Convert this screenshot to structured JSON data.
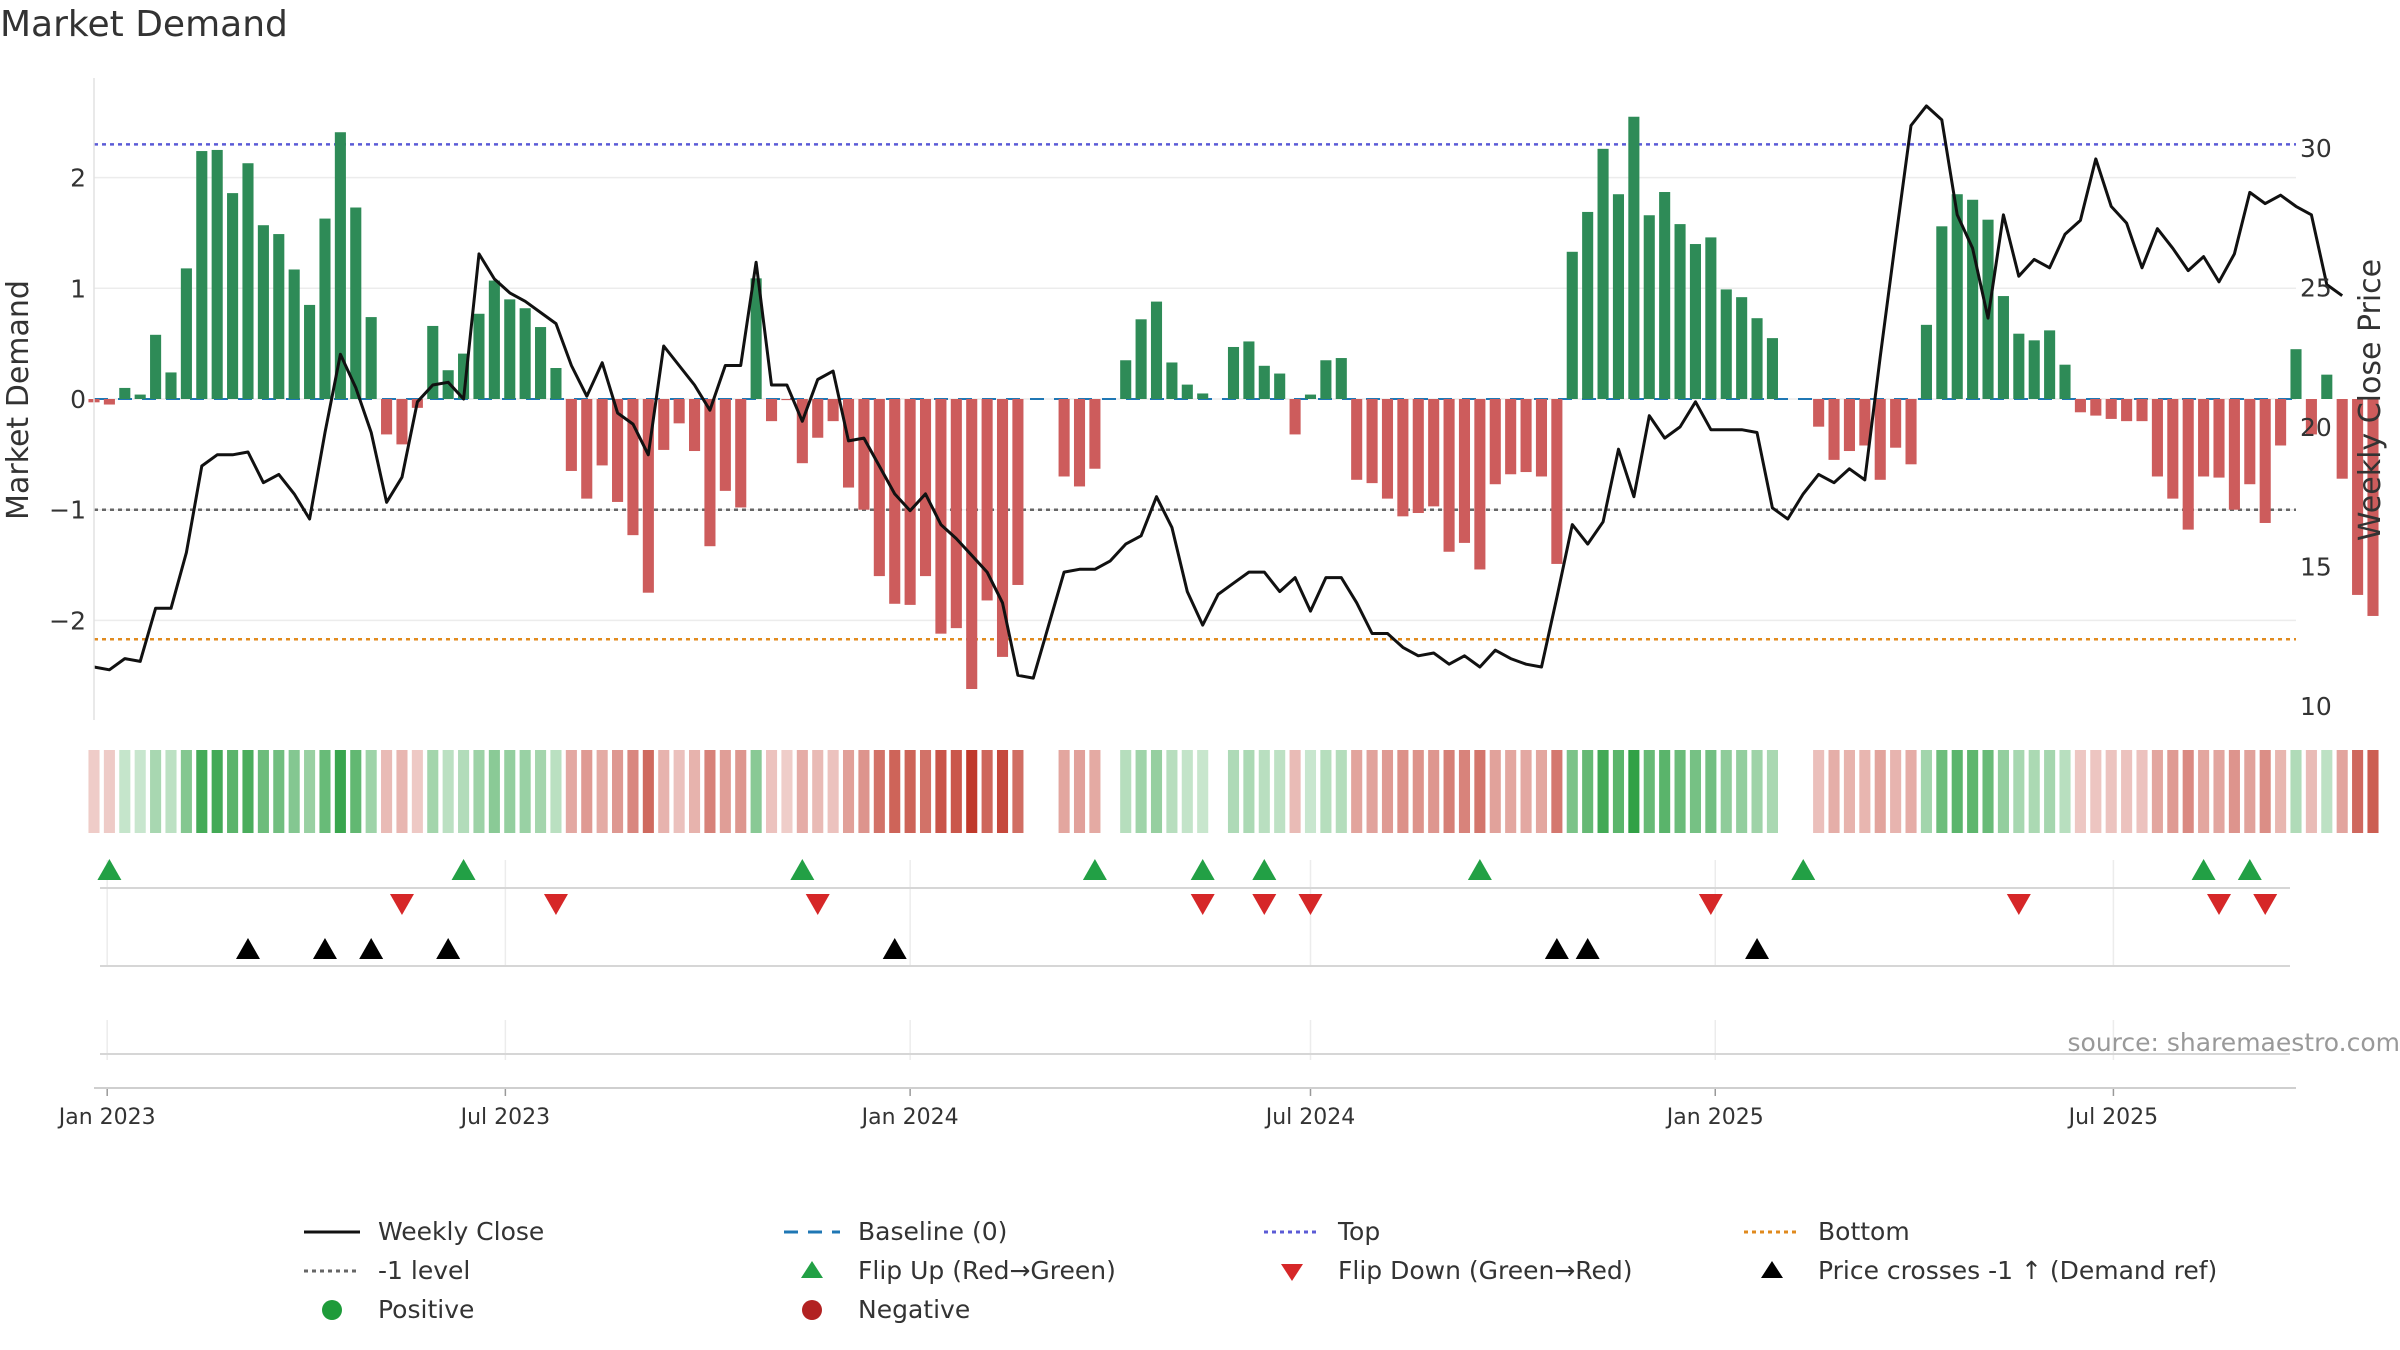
{
  "title": "Market Demand",
  "source_note": "source: sharemaestro.com",
  "colors": {
    "positive_bar": "#2e8b57",
    "negative_bar": "#cd5c5c",
    "close_line": "#111111",
    "baseline": "#1f77b4",
    "top": "#5b5bd6",
    "bottom": "#e08a1e",
    "minus_one": "#666666",
    "flip_up": "#22a045",
    "flip_down": "#d62728",
    "cross": "#000000",
    "positive_dot": "#1e9b3a",
    "negative_dot": "#b22222"
  },
  "chart_data": {
    "type": "bar",
    "title": "Market Demand",
    "ylabel": "Market Demand",
    "y2label": "Weekly Close Price",
    "ylim": [
      -2.9,
      2.9
    ],
    "y2lim": [
      9.5,
      32.5
    ],
    "yticks": [
      -2,
      -1,
      0,
      1,
      2
    ],
    "ytick_labels": [
      "−2",
      "−1",
      "0",
      "1",
      "2"
    ],
    "y2ticks": [
      10,
      15,
      20,
      25,
      30
    ],
    "y2tick_labels": [
      "10",
      "15",
      "20",
      "25",
      "30"
    ],
    "top_level": 2.3,
    "bottom_level": -2.17,
    "minus_one_level": -1,
    "x_start": "2022-12-26",
    "x_end": "2025-09-22",
    "xticks": [
      {
        "date": "2023-01-01",
        "label": "Jan 2023"
      },
      {
        "date": "2023-07-01",
        "label": "Jul 2023"
      },
      {
        "date": "2024-01-01",
        "label": "Jan 2024"
      },
      {
        "date": "2024-07-01",
        "label": "Jul 2024"
      },
      {
        "date": "2025-01-01",
        "label": "Jan 2025"
      },
      {
        "date": "2025-07-01",
        "label": "Jul 2025"
      }
    ],
    "first_week": "2022-12-26",
    "demand": [
      -0.03,
      -0.05,
      0.1,
      0.04,
      0.58,
      0.24,
      1.18,
      2.24,
      2.25,
      1.86,
      2.13,
      1.57,
      1.49,
      1.17,
      0.85,
      1.63,
      2.41,
      1.73,
      0.74,
      -0.32,
      -0.41,
      -0.08,
      0.66,
      0.26,
      0.41,
      0.77,
      1.07,
      0.9,
      0.82,
      0.65,
      0.28,
      -0.65,
      -0.9,
      -0.6,
      -0.93,
      -1.23,
      -1.75,
      -0.46,
      -0.22,
      -0.47,
      -1.33,
      -0.83,
      -0.98,
      1.09,
      -0.2,
      -0.01,
      -0.58,
      -0.35,
      -0.2,
      -0.8,
      -1.0,
      -1.6,
      -1.85,
      -1.86,
      -1.6,
      -2.12,
      -2.07,
      -2.62,
      -1.82,
      -2.33,
      -1.68,
      0.0,
      0.0,
      -0.7,
      -0.79,
      -0.63,
      0.0,
      0.35,
      0.72,
      0.88,
      0.33,
      0.13,
      0.05,
      0.0,
      0.47,
      0.52,
      0.3,
      0.23,
      -0.32,
      0.04,
      0.35,
      0.37,
      -0.73,
      -0.76,
      -0.9,
      -1.06,
      -1.03,
      -0.97,
      -1.38,
      -1.3,
      -1.54,
      -0.77,
      -0.68,
      -0.66,
      -0.7,
      -1.49,
      1.33,
      1.69,
      2.26,
      1.85,
      2.55,
      1.66,
      1.87,
      1.58,
      1.4,
      1.46,
      0.99,
      0.92,
      0.73,
      0.55,
      0.0,
      0.0,
      -0.25,
      -0.55,
      -0.47,
      -0.42,
      -0.73,
      -0.44,
      -0.59,
      0.67,
      1.56,
      1.85,
      1.8,
      1.62,
      0.93,
      0.59,
      0.53,
      0.62,
      0.31,
      -0.12,
      -0.15,
      -0.18,
      -0.2,
      -0.2,
      -0.7,
      -0.9,
      -1.18,
      -0.7,
      -0.71,
      -1.0,
      -0.77,
      -1.12,
      -0.42,
      0.45,
      -0.32,
      0.22,
      -0.72,
      -1.77,
      -1.96
    ],
    "close": [
      11.4,
      11.3,
      11.7,
      11.6,
      13.5,
      13.5,
      15.5,
      18.6,
      19.0,
      19.0,
      19.1,
      18.0,
      18.3,
      17.6,
      16.7,
      19.8,
      22.6,
      21.4,
      19.8,
      17.3,
      18.2,
      20.9,
      21.5,
      21.6,
      21.0,
      26.2,
      25.3,
      24.8,
      24.5,
      24.1,
      23.7,
      22.2,
      21.1,
      22.3,
      20.5,
      20.1,
      19.0,
      22.9,
      22.2,
      21.5,
      20.6,
      22.2,
      22.2,
      25.9,
      21.5,
      21.5,
      20.2,
      21.7,
      22.0,
      19.5,
      19.6,
      18.6,
      17.6,
      17.0,
      17.6,
      16.5,
      16.0,
      15.4,
      14.8,
      13.7,
      11.1,
      11.0,
      12.9,
      14.8,
      14.9,
      14.9,
      15.2,
      15.8,
      16.1,
      17.5,
      16.4,
      14.1,
      12.9,
      14.0,
      14.4,
      14.8,
      14.8,
      14.1,
      14.6,
      13.4,
      14.6,
      14.6,
      13.7,
      12.6,
      12.6,
      12.1,
      11.8,
      11.9,
      11.5,
      11.8,
      11.4,
      12.0,
      11.7,
      11.5,
      11.4,
      13.9,
      16.5,
      15.8,
      16.6,
      19.2,
      17.5,
      20.4,
      19.6,
      20.0,
      20.9,
      19.9,
      19.9,
      19.9,
      19.8,
      17.1,
      16.7,
      17.6,
      18.3,
      18.0,
      18.5,
      18.1,
      22.5,
      26.7,
      30.8,
      31.5,
      31.0,
      27.6,
      26.4,
      23.9,
      27.6,
      25.4,
      26.0,
      25.7,
      26.9,
      27.4,
      29.6,
      27.9,
      27.3,
      25.7,
      27.1,
      26.4,
      25.6,
      26.1,
      25.2,
      26.2,
      28.4,
      28.0,
      28.3,
      27.9,
      27.6,
      25.1,
      24.7
    ],
    "flip_up_dates": [
      "2023-01-02",
      "2023-06-12",
      "2023-11-13",
      "2024-03-25",
      "2024-05-13",
      "2024-06-10",
      "2024-09-16",
      "2025-02-10",
      "2025-08-11",
      "2025-09-01"
    ],
    "flip_down_dates": [
      "2023-05-15",
      "2023-07-24",
      "2023-11-20",
      "2024-05-13",
      "2024-06-10",
      "2024-07-01",
      "2024-12-30",
      "2025-05-19",
      "2025-08-18",
      "2025-09-08"
    ],
    "cross_dates": [
      "2023-03-06",
      "2023-04-10",
      "2023-05-01",
      "2023-06-05",
      "2023-12-25",
      "2024-10-21",
      "2024-11-04",
      "2025-01-20"
    ]
  },
  "legend": [
    {
      "kind": "line",
      "label": "Weekly Close",
      "color": "#111111",
      "dash": ""
    },
    {
      "kind": "line",
      "label": "Baseline (0)",
      "color": "#1f77b4",
      "dash": "14,10"
    },
    {
      "kind": "line",
      "label": "Top",
      "color": "#5b5bd6",
      "dash": "4,4"
    },
    {
      "kind": "line",
      "label": "Bottom",
      "color": "#e08a1e",
      "dash": "4,4"
    },
    {
      "kind": "line",
      "label": "-1 level",
      "color": "#666666",
      "dash": "4,4"
    },
    {
      "kind": "tri-up",
      "label": "Flip Up (Red→Green)",
      "color": "#22a045"
    },
    {
      "kind": "tri-down",
      "label": "Flip Down (Green→Red)",
      "color": "#d62728"
    },
    {
      "kind": "tri-up",
      "label": "Price crosses -1 ↑ (Demand ref)",
      "color": "#000000"
    },
    {
      "kind": "dot",
      "label": "Positive",
      "color": "#1e9b3a"
    },
    {
      "kind": "dot",
      "label": "Negative",
      "color": "#b22222"
    }
  ]
}
